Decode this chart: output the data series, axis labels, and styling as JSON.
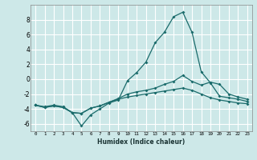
{
  "xlabel": "Humidex (Indice chaleur)",
  "bg_color": "#cde8e8",
  "grid_color": "#ffffff",
  "line_color": "#1a6b6b",
  "xlim": [
    -0.5,
    23.5
  ],
  "ylim": [
    -7,
    10
  ],
  "yticks": [
    -6,
    -4,
    -2,
    0,
    2,
    4,
    6,
    8
  ],
  "xticks": [
    0,
    1,
    2,
    3,
    4,
    5,
    6,
    7,
    8,
    9,
    10,
    11,
    12,
    13,
    14,
    15,
    16,
    17,
    18,
    19,
    20,
    21,
    22,
    23
  ],
  "line1_x": [
    0,
    1,
    2,
    3,
    4,
    5,
    6,
    7,
    8,
    9,
    10,
    11,
    12,
    13,
    14,
    15,
    16,
    17,
    18,
    19,
    20,
    21,
    22,
    23
  ],
  "line1_y": [
    -3.5,
    -3.7,
    -3.5,
    -3.7,
    -4.5,
    -6.3,
    -4.8,
    -4.0,
    -3.2,
    -2.8,
    -0.2,
    0.9,
    2.3,
    4.9,
    6.3,
    8.4,
    9.0,
    6.3,
    1.0,
    -0.5,
    -2.3,
    -2.5,
    -2.7,
    -3.0
  ],
  "line2_x": [
    0,
    1,
    2,
    3,
    4,
    5,
    6,
    7,
    8,
    9,
    10,
    11,
    12,
    13,
    14,
    15,
    16,
    17,
    18,
    19,
    20,
    21,
    22,
    23
  ],
  "line2_y": [
    -3.5,
    -3.8,
    -3.6,
    -3.8,
    -4.5,
    -4.6,
    -3.9,
    -3.6,
    -3.1,
    -2.6,
    -2.0,
    -1.7,
    -1.5,
    -1.2,
    -0.7,
    -0.3,
    0.5,
    -0.3,
    -0.8,
    -0.4,
    -0.7,
    -2.0,
    -2.4,
    -2.7
  ],
  "line3_x": [
    0,
    1,
    2,
    3,
    4,
    5,
    6,
    7,
    8,
    9,
    10,
    11,
    12,
    13,
    14,
    15,
    16,
    17,
    18,
    19,
    20,
    21,
    22,
    23
  ],
  "line3_y": [
    -3.5,
    -3.8,
    -3.6,
    -3.8,
    -4.5,
    -4.6,
    -3.9,
    -3.6,
    -3.1,
    -2.7,
    -2.4,
    -2.2,
    -2.0,
    -1.8,
    -1.6,
    -1.4,
    -1.2,
    -1.5,
    -2.0,
    -2.5,
    -2.8,
    -3.0,
    -3.2,
    -3.3
  ]
}
